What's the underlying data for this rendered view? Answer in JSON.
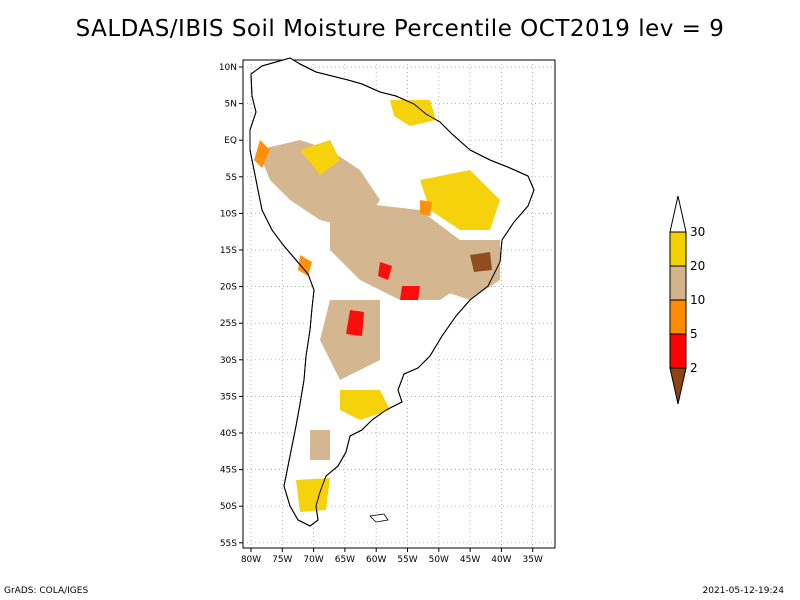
{
  "title": "SALDAS/IBIS Soil Moisture Percentile OCT2019 lev = 9",
  "lat_ticks": [
    "10N",
    "5N",
    "EQ",
    "5S",
    "10S",
    "15S",
    "20S",
    "25S",
    "30S",
    "35S",
    "40S",
    "45S",
    "50S",
    "55S"
  ],
  "lon_ticks": [
    "80W",
    "75W",
    "70W",
    "65W",
    "60W",
    "55W",
    "50W",
    "45W",
    "40W",
    "35W"
  ],
  "colorbar": {
    "labels": [
      "30",
      "20",
      "10",
      "5",
      "2"
    ],
    "classes": [
      {
        "name": "above-30",
        "color": "#ffffff"
      },
      {
        "name": "20-30",
        "color": "#f5d000"
      },
      {
        "name": "10-20",
        "color": "#d2b48c"
      },
      {
        "name": "5-10",
        "color": "#ff8c00"
      },
      {
        "name": "2-5",
        "color": "#ff0000"
      },
      {
        "name": "below-2",
        "color": "#8b4513"
      }
    ]
  },
  "footer_left": "GrADS: COLA/IGES",
  "footer_right": "2021-05-12-19:24"
}
